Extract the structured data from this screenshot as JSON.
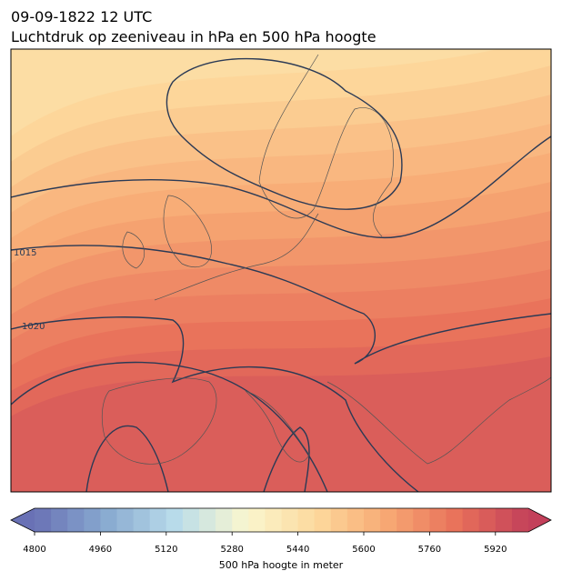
{
  "title": "09-09-1822 12 UTC",
  "subtitle": "Luchtdruk op zeeniveau in hPa en 500 hPa hoogte",
  "contour_labels": [
    "1015",
    "1020"
  ],
  "colorbar": {
    "label": "500 hPa hoogte in meter",
    "range": [
      4800,
      6000
    ],
    "ticks": [
      4800,
      4960,
      5120,
      5280,
      5440,
      5600,
      5760,
      5920
    ],
    "step": 40,
    "colormap": [
      "#6971b5",
      "#88a9d0",
      "#b9dcea",
      "#f9f6cf",
      "#fdd99c",
      "#f7a873",
      "#e8705a",
      "#c3405a"
    ]
  }
}
